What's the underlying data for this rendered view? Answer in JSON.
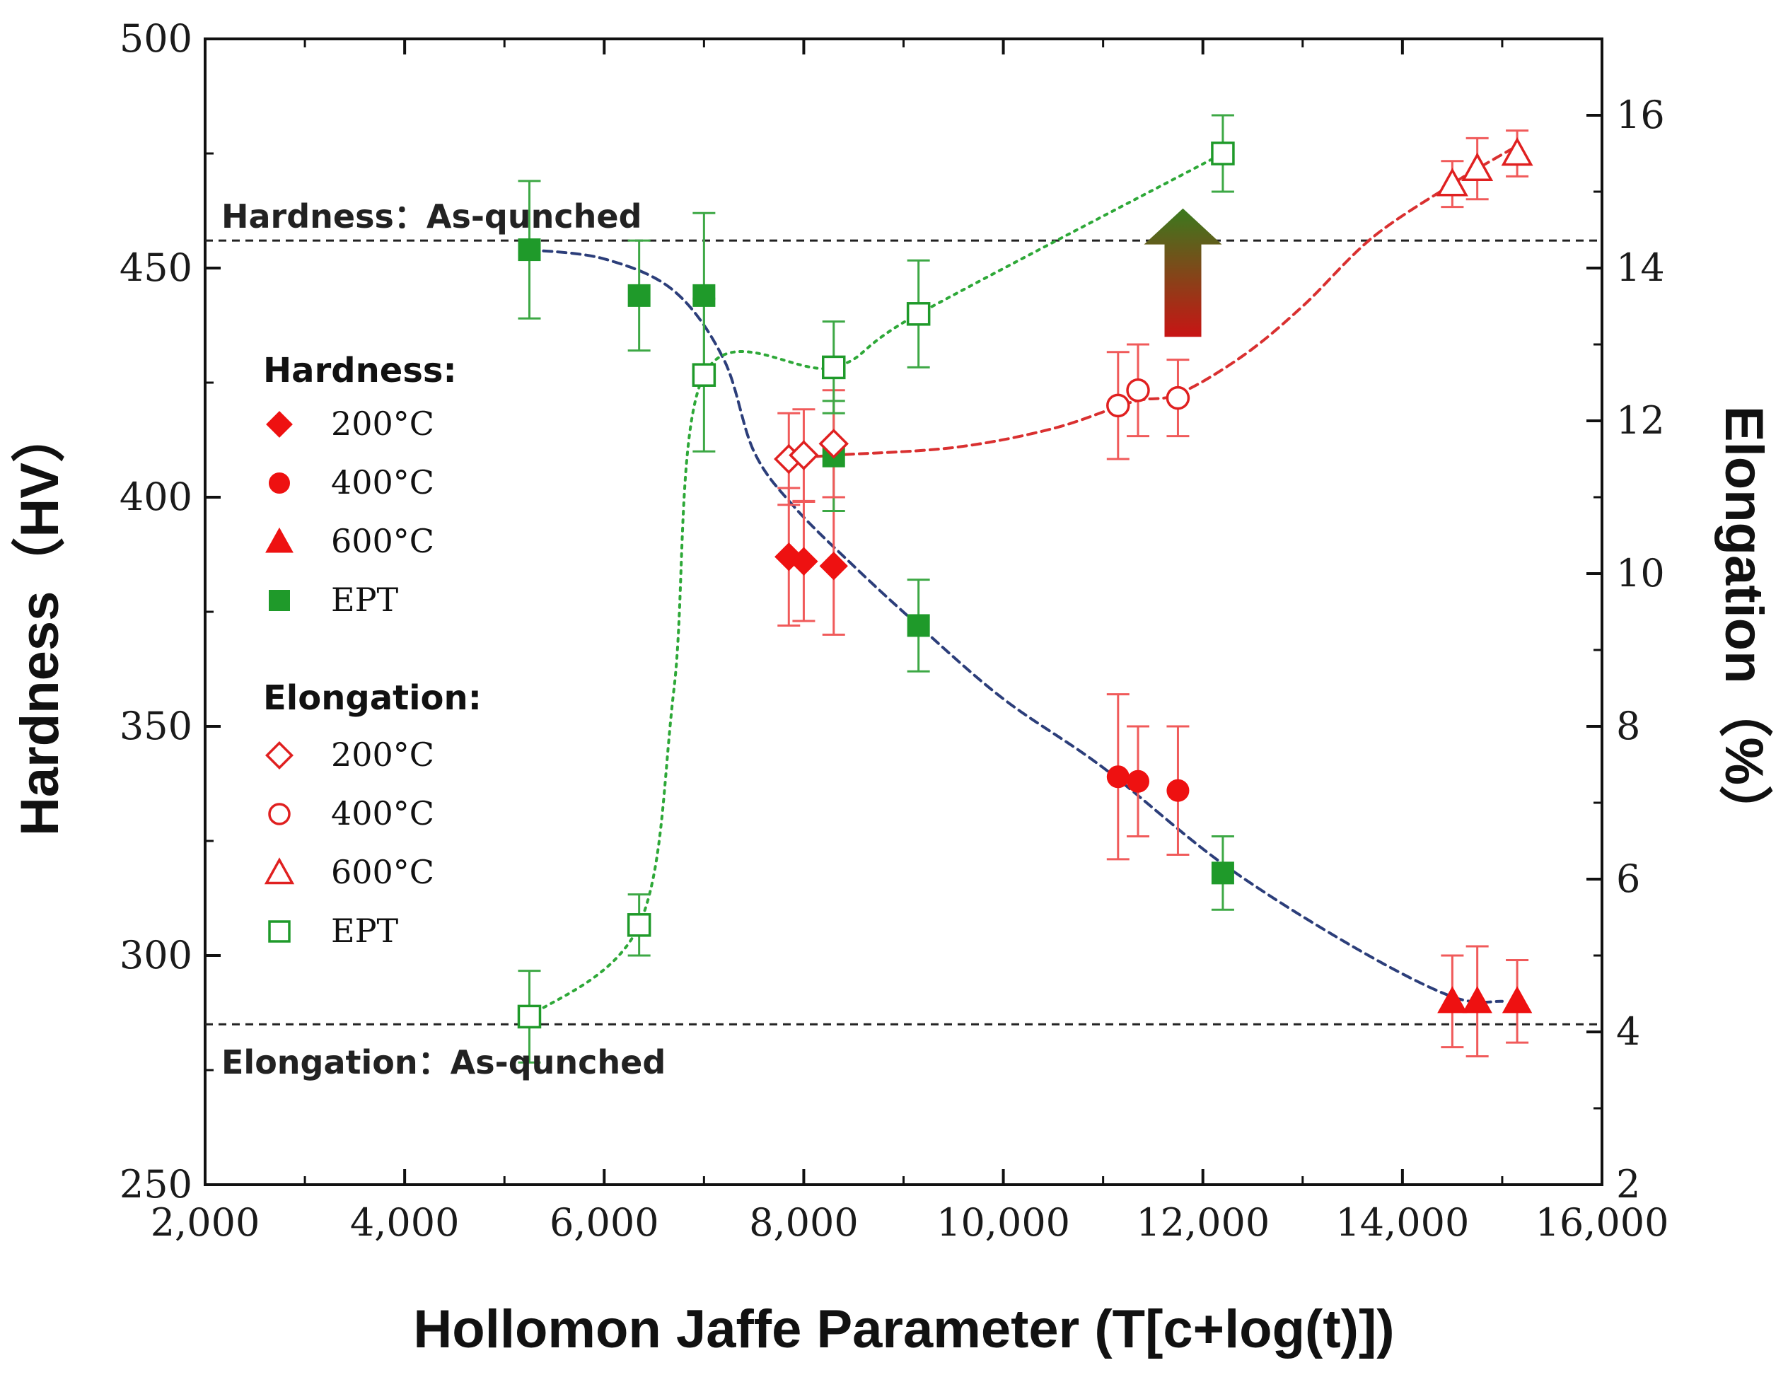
{
  "chart_data": {
    "type": "scatter",
    "title": "",
    "xlabel": "Hollomon Jaffe Parameter (T[c+log(t)])",
    "ylabel_left": "Hardness（HV）",
    "ylabel_right": "Elongation（%）",
    "xlim": [
      2000,
      16000
    ],
    "ylim_left": [
      250,
      500
    ],
    "ylim_right": [
      2,
      17
    ],
    "x_ticks": [
      "2,000",
      "4,000",
      "6,000",
      "8,000",
      "10,000",
      "12,000",
      "14,000",
      "16,000"
    ],
    "y_left_ticks": [
      "250",
      "300",
      "350",
      "400",
      "450",
      "500"
    ],
    "y_right_ticks": [
      "2",
      "4",
      "6",
      "8",
      "10",
      "12",
      "14",
      "16"
    ],
    "reference_lines": [
      {
        "name": "hardness-as-quenched",
        "axis": "left",
        "value": 456,
        "label": "Hardness：As-qunched"
      },
      {
        "name": "elongation-as-quenched",
        "axis": "right",
        "value": 4.1,
        "label": "Elongation：As-qunched"
      }
    ],
    "legend": {
      "hardness_heading": "Hardness:",
      "elongation_heading": "Elongation:",
      "hardness_items": [
        "200°C",
        "400°C",
        "600°C",
        "EPT"
      ],
      "elongation_items": [
        "200°C",
        "400°C",
        "600°C",
        "EPT"
      ]
    },
    "series": [
      {
        "name": "Hardness 200°C",
        "group": "hardness",
        "axis": "left",
        "marker": "diamond",
        "filled": true,
        "color": "#ee1111",
        "points": [
          {
            "x": 7850,
            "y": 387,
            "err": 15
          },
          {
            "x": 8000,
            "y": 386,
            "err": 13
          },
          {
            "x": 8300,
            "y": 385,
            "err": 15
          }
        ]
      },
      {
        "name": "Hardness 400°C",
        "group": "hardness",
        "axis": "left",
        "marker": "circle",
        "filled": true,
        "color": "#ee1111",
        "points": [
          {
            "x": 11150,
            "y": 339,
            "err": 18
          },
          {
            "x": 11350,
            "y": 338,
            "err": 12
          },
          {
            "x": 11750,
            "y": 336,
            "err": 14
          }
        ]
      },
      {
        "name": "Hardness 600°C",
        "group": "hardness",
        "axis": "left",
        "marker": "triangle",
        "filled": true,
        "color": "#ee1111",
        "points": [
          {
            "x": 14500,
            "y": 290,
            "err": 10
          },
          {
            "x": 14750,
            "y": 290,
            "err": 12
          },
          {
            "x": 15150,
            "y": 290,
            "err": 9
          }
        ]
      },
      {
        "name": "Hardness EPT",
        "group": "hardness",
        "axis": "left",
        "marker": "square",
        "filled": true,
        "color": "#1f9a2a",
        "points": [
          {
            "x": 5250,
            "y": 454,
            "err": 15
          },
          {
            "x": 6350,
            "y": 444,
            "err": 12
          },
          {
            "x": 7000,
            "y": 444,
            "err": 18
          },
          {
            "x": 8300,
            "y": 409,
            "err": 12
          },
          {
            "x": 9150,
            "y": 372,
            "err": 10
          },
          {
            "x": 12200,
            "y": 318,
            "err": 8
          }
        ]
      },
      {
        "name": "Elongation 200°C",
        "group": "elongation",
        "axis": "right",
        "marker": "diamond",
        "filled": false,
        "color": "#e02020",
        "points": [
          {
            "x": 7850,
            "y": 11.5,
            "err": 0.6
          },
          {
            "x": 8000,
            "y": 11.55,
            "err": 0.6
          },
          {
            "x": 8300,
            "y": 11.7,
            "err": 0.7
          }
        ]
      },
      {
        "name": "Elongation 400°C",
        "group": "elongation",
        "axis": "right",
        "marker": "circle",
        "filled": false,
        "color": "#e02020",
        "points": [
          {
            "x": 11150,
            "y": 12.2,
            "err": 0.7
          },
          {
            "x": 11350,
            "y": 12.4,
            "err": 0.6
          },
          {
            "x": 11750,
            "y": 12.3,
            "err": 0.5
          }
        ]
      },
      {
        "name": "Elongation 600°C",
        "group": "elongation",
        "axis": "right",
        "marker": "triangle",
        "filled": false,
        "color": "#e02020",
        "points": [
          {
            "x": 14500,
            "y": 15.1,
            "err": 0.3
          },
          {
            "x": 14750,
            "y": 15.3,
            "err": 0.4
          },
          {
            "x": 15150,
            "y": 15.5,
            "err": 0.3
          }
        ]
      },
      {
        "name": "Elongation EPT",
        "group": "elongation",
        "axis": "right",
        "marker": "square",
        "filled": false,
        "color": "#1f9a2a",
        "points": [
          {
            "x": 5250,
            "y": 4.2,
            "err": 0.6
          },
          {
            "x": 6350,
            "y": 5.4,
            "err": 0.4
          },
          {
            "x": 7000,
            "y": 12.6,
            "err": 1.0
          },
          {
            "x": 8300,
            "y": 12.7,
            "err": 0.6
          },
          {
            "x": 9150,
            "y": 13.4,
            "err": 0.7
          },
          {
            "x": 12200,
            "y": 15.5,
            "err": 0.5
          }
        ]
      }
    ],
    "fit_curves": [
      {
        "name": "hardness-trend-curve",
        "axis": "left",
        "color": "#2c3e7a",
        "points": [
          [
            5250,
            454
          ],
          [
            6000,
            452
          ],
          [
            6700,
            445
          ],
          [
            7200,
            430
          ],
          [
            7500,
            410
          ],
          [
            7900,
            398
          ],
          [
            8500,
            385
          ],
          [
            9150,
            372
          ],
          [
            10000,
            356
          ],
          [
            11000,
            341
          ],
          [
            12200,
            320
          ],
          [
            13500,
            302
          ],
          [
            14500,
            291
          ],
          [
            15000,
            290
          ]
        ]
      },
      {
        "name": "elongation-red-trend-curve",
        "axis": "right",
        "color": "#d93030",
        "points": [
          [
            7850,
            11.5
          ],
          [
            8300,
            11.55
          ],
          [
            9500,
            11.65
          ],
          [
            10500,
            11.9
          ],
          [
            11300,
            12.25
          ],
          [
            11750,
            12.35
          ],
          [
            12400,
            12.85
          ],
          [
            13000,
            13.5
          ],
          [
            13700,
            14.4
          ],
          [
            14500,
            15.1
          ],
          [
            14750,
            15.3
          ],
          [
            15150,
            15.6
          ]
        ]
      },
      {
        "name": "elongation-ept-trend-curve",
        "axis": "right",
        "color": "#2ea838",
        "points": [
          [
            5250,
            4.2
          ],
          [
            6350,
            5.4
          ],
          [
            6700,
            8.5
          ],
          [
            7000,
            12.6
          ],
          [
            8300,
            12.7
          ],
          [
            9150,
            13.4
          ],
          [
            12200,
            15.5
          ]
        ]
      }
    ],
    "annotations": [
      {
        "name": "improvement-arrow",
        "type": "arrow-up",
        "x": 11800,
        "y_bottom": 435,
        "y_top": 463,
        "gradient": [
          "#c81414",
          "#3a7a1e"
        ]
      }
    ]
  }
}
